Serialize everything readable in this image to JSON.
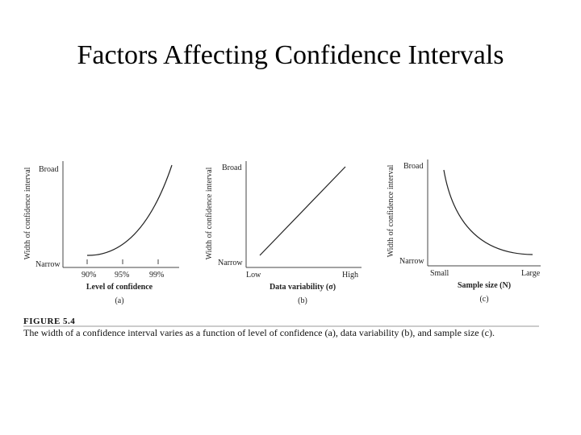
{
  "slide": {
    "title": "Factors Affecting Confidence Intervals"
  },
  "charts": [
    {
      "ylabel": "Width of confidence interval",
      "ytop": "Broad",
      "ybottom": "Narrow",
      "xticks": [
        "90%",
        "95%",
        "99%"
      ],
      "xlabel": "Level of confidence",
      "panel": "(a)"
    },
    {
      "ylabel": "Width of confidence interval",
      "ytop": "Broad",
      "ybottom": "Narrow",
      "xleft": "Low",
      "xright": "High",
      "xlabel": "Data variability (σ)",
      "panel": "(b)"
    },
    {
      "ylabel": "Width of confidence interval",
      "ytop": "Broad",
      "ybottom": "Narrow",
      "xleft": "Small",
      "xright": "Large",
      "xlabel": "Sample size (N)",
      "panel": "(c)"
    }
  ],
  "figure": {
    "label": "FIGURE 5.4",
    "caption": "The width of a confidence interval varies as a function of level of confidence (a), data variability (b), and sample size (c)."
  },
  "chart_data": [
    {
      "type": "line",
      "x": [
        "90%",
        "95%",
        "99%"
      ],
      "trend": "increasing, convex"
    },
    {
      "type": "line",
      "x": [
        "Low",
        "High"
      ],
      "trend": "increasing, linear"
    },
    {
      "type": "line",
      "x": [
        "Small",
        "Large"
      ],
      "trend": "decreasing, convex"
    }
  ]
}
